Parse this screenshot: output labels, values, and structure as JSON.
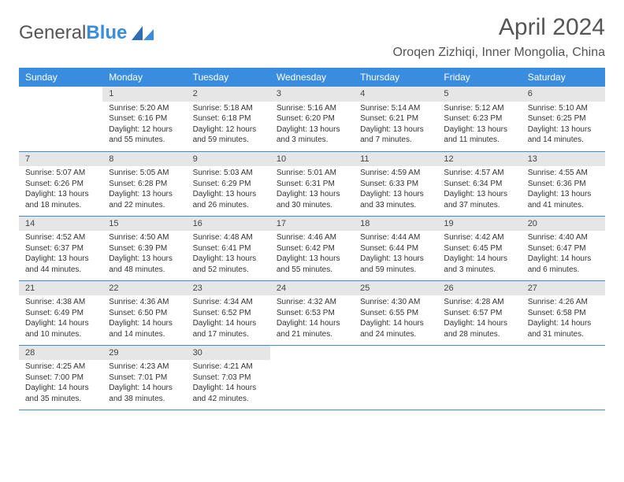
{
  "logo": {
    "text1": "General",
    "text2": "Blue"
  },
  "title": "April 2024",
  "location": "Oroqen Zizhiqi, Inner Mongolia, China",
  "colors": {
    "header_bg": "#3a8dde",
    "header_fg": "#ffffff",
    "daynum_bg": "#e6e6e6",
    "border": "#3a8dde",
    "text": "#333333",
    "title_color": "#555555"
  },
  "weekdays": [
    "Sunday",
    "Monday",
    "Tuesday",
    "Wednesday",
    "Thursday",
    "Friday",
    "Saturday"
  ],
  "start_offset": 1,
  "days": [
    {
      "n": 1,
      "sunrise": "5:20 AM",
      "sunset": "6:16 PM",
      "daylight": "12 hours and 55 minutes."
    },
    {
      "n": 2,
      "sunrise": "5:18 AM",
      "sunset": "6:18 PM",
      "daylight": "12 hours and 59 minutes."
    },
    {
      "n": 3,
      "sunrise": "5:16 AM",
      "sunset": "6:20 PM",
      "daylight": "13 hours and 3 minutes."
    },
    {
      "n": 4,
      "sunrise": "5:14 AM",
      "sunset": "6:21 PM",
      "daylight": "13 hours and 7 minutes."
    },
    {
      "n": 5,
      "sunrise": "5:12 AM",
      "sunset": "6:23 PM",
      "daylight": "13 hours and 11 minutes."
    },
    {
      "n": 6,
      "sunrise": "5:10 AM",
      "sunset": "6:25 PM",
      "daylight": "13 hours and 14 minutes."
    },
    {
      "n": 7,
      "sunrise": "5:07 AM",
      "sunset": "6:26 PM",
      "daylight": "13 hours and 18 minutes."
    },
    {
      "n": 8,
      "sunrise": "5:05 AM",
      "sunset": "6:28 PM",
      "daylight": "13 hours and 22 minutes."
    },
    {
      "n": 9,
      "sunrise": "5:03 AM",
      "sunset": "6:29 PM",
      "daylight": "13 hours and 26 minutes."
    },
    {
      "n": 10,
      "sunrise": "5:01 AM",
      "sunset": "6:31 PM",
      "daylight": "13 hours and 30 minutes."
    },
    {
      "n": 11,
      "sunrise": "4:59 AM",
      "sunset": "6:33 PM",
      "daylight": "13 hours and 33 minutes."
    },
    {
      "n": 12,
      "sunrise": "4:57 AM",
      "sunset": "6:34 PM",
      "daylight": "13 hours and 37 minutes."
    },
    {
      "n": 13,
      "sunrise": "4:55 AM",
      "sunset": "6:36 PM",
      "daylight": "13 hours and 41 minutes."
    },
    {
      "n": 14,
      "sunrise": "4:52 AM",
      "sunset": "6:37 PM",
      "daylight": "13 hours and 44 minutes."
    },
    {
      "n": 15,
      "sunrise": "4:50 AM",
      "sunset": "6:39 PM",
      "daylight": "13 hours and 48 minutes."
    },
    {
      "n": 16,
      "sunrise": "4:48 AM",
      "sunset": "6:41 PM",
      "daylight": "13 hours and 52 minutes."
    },
    {
      "n": 17,
      "sunrise": "4:46 AM",
      "sunset": "6:42 PM",
      "daylight": "13 hours and 55 minutes."
    },
    {
      "n": 18,
      "sunrise": "4:44 AM",
      "sunset": "6:44 PM",
      "daylight": "13 hours and 59 minutes."
    },
    {
      "n": 19,
      "sunrise": "4:42 AM",
      "sunset": "6:45 PM",
      "daylight": "14 hours and 3 minutes."
    },
    {
      "n": 20,
      "sunrise": "4:40 AM",
      "sunset": "6:47 PM",
      "daylight": "14 hours and 6 minutes."
    },
    {
      "n": 21,
      "sunrise": "4:38 AM",
      "sunset": "6:49 PM",
      "daylight": "14 hours and 10 minutes."
    },
    {
      "n": 22,
      "sunrise": "4:36 AM",
      "sunset": "6:50 PM",
      "daylight": "14 hours and 14 minutes."
    },
    {
      "n": 23,
      "sunrise": "4:34 AM",
      "sunset": "6:52 PM",
      "daylight": "14 hours and 17 minutes."
    },
    {
      "n": 24,
      "sunrise": "4:32 AM",
      "sunset": "6:53 PM",
      "daylight": "14 hours and 21 minutes."
    },
    {
      "n": 25,
      "sunrise": "4:30 AM",
      "sunset": "6:55 PM",
      "daylight": "14 hours and 24 minutes."
    },
    {
      "n": 26,
      "sunrise": "4:28 AM",
      "sunset": "6:57 PM",
      "daylight": "14 hours and 28 minutes."
    },
    {
      "n": 27,
      "sunrise": "4:26 AM",
      "sunset": "6:58 PM",
      "daylight": "14 hours and 31 minutes."
    },
    {
      "n": 28,
      "sunrise": "4:25 AM",
      "sunset": "7:00 PM",
      "daylight": "14 hours and 35 minutes."
    },
    {
      "n": 29,
      "sunrise": "4:23 AM",
      "sunset": "7:01 PM",
      "daylight": "14 hours and 38 minutes."
    },
    {
      "n": 30,
      "sunrise": "4:21 AM",
      "sunset": "7:03 PM",
      "daylight": "14 hours and 42 minutes."
    }
  ],
  "labels": {
    "sunrise": "Sunrise:",
    "sunset": "Sunset:",
    "daylight": "Daylight:"
  }
}
